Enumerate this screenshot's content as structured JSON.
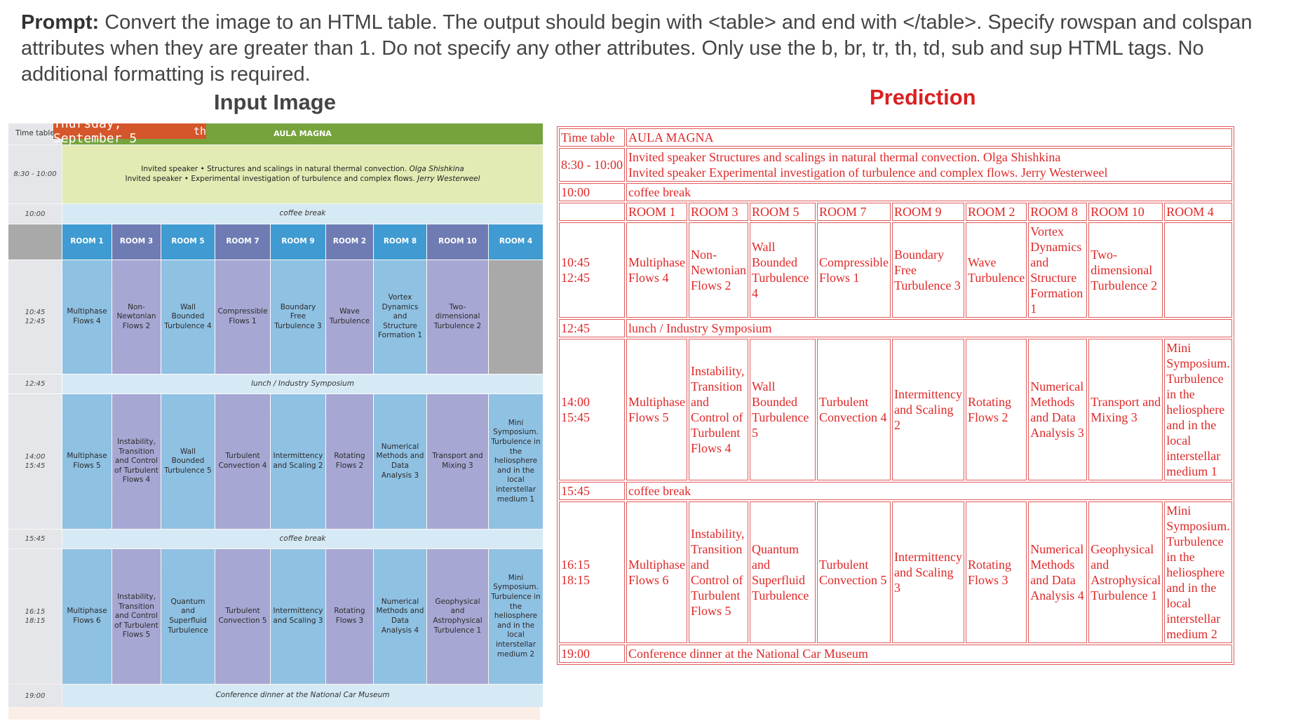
{
  "prompt": {
    "label": "Prompt:",
    "text": "Convert the image to an HTML table. The output should begin with <table> and end with </table>. Specify rowspan and colspan attributes when they are greater than 1. Do not specify any other attributes. Only use the b, br, tr, th, td, sub and sup HTML tags. No additional formatting is required."
  },
  "titles": {
    "input": "Input Image",
    "prediction": "Prediction"
  },
  "input_image": {
    "day": "Thursday, September 5",
    "day_sup": "th",
    "timetable_label": "Time table",
    "hall": "AULA MAGNA",
    "times": {
      "t1": "8:30 - 10:00",
      "t2": "10:00",
      "t3a": "10:45",
      "t3b": "12:45",
      "t4": "12:45",
      "t5a": "14:00",
      "t5b": "15:45",
      "t6": "15:45",
      "t7a": "16:15",
      "t7b": "18:15",
      "t8": "19:00"
    },
    "invited1": "Invited speaker • Structures and scalings in natural thermal convection.",
    "invited1_name": "Olga Shishkina",
    "invited2": "Invited speaker • Experimental investigation of turbulence and complex flows.",
    "invited2_name": "Jerry Westerweel",
    "coffee": "coffee break",
    "lunch": "lunch / Industry Symposium",
    "dinner": "Conference dinner at the National Car Museum",
    "rooms": [
      "ROOM 1",
      "ROOM 3",
      "ROOM 5",
      "ROOM 7",
      "ROOM 9",
      "ROOM 2",
      "ROOM 8",
      "ROOM 10",
      "ROOM 4"
    ],
    "session1": [
      "Multiphase Flows 4",
      "Non-Newtonian Flows 2",
      "Wall Bounded Turbulence 4",
      "Compressible Flows 1",
      "Boundary Free Turbulence 3",
      "Wave Turbulence",
      "Vortex Dynamics and Structure Formation 1",
      "Two-dimensional Turbulence 2"
    ],
    "session2": [
      "Multiphase Flows 5",
      "Instability, Transition and Control of Turbulent Flows 4",
      "Wall Bounded Turbulence 5",
      "Turbulent Convection 4",
      "Intermittency and Scaling 2",
      "Rotating Flows 2",
      "Numerical Methods and Data Analysis 3",
      "Transport and Mixing 3",
      "Mini Symposium. Turbulence in the heliosphere and in the local interstellar medium 1"
    ],
    "session3": [
      "Multiphase Flows 6",
      "Instability, Transition and Control of Turbulent Flows 5",
      "Quantum and Superfluid Turbulence",
      "Turbulent Convection 5",
      "Intermittency and Scaling 3",
      "Rotating Flows 3",
      "Numerical Methods and Data Analysis 4",
      "Geophysical and Astrophysical Turbulence 1",
      "Mini Symposium. Turbulence in the heliosphere and in the local interstellar medium 2"
    ]
  },
  "prediction": {
    "r1": [
      "Time table",
      "AULA MAGNA"
    ],
    "r2_time": "8:30 - 10:00",
    "r2_line1": "Invited speaker Structures and scalings in natural thermal convection. Olga Shishkina",
    "r2_line2": "Invited speaker Experimental investigation of turbulence and complex flows. Jerry Westerweel",
    "r3": [
      "10:00",
      "coffee break"
    ],
    "rooms": [
      "ROOM 1",
      "ROOM 3",
      "ROOM 5",
      "ROOM 7",
      "ROOM 9",
      "ROOM 2",
      "ROOM 8",
      "ROOM 10",
      "ROOM 4"
    ],
    "r5_time1": "10:45",
    "r5_time2": "12:45",
    "r5": [
      "Multiphase Flows 4",
      "Non-Newtonian Flows 2",
      "Wall Bounded Turbulence 4",
      "Compressible Flows 1",
      "Boundary Free Turbulence 3",
      "Wave Turbulence",
      "Vortex Dynamics and Structure Formation 1",
      "Two-dimensional Turbulence 2"
    ],
    "r6": [
      "12:45",
      "lunch / Industry Symposium"
    ],
    "r7_time1": "14:00",
    "r7_time2": "15:45",
    "r7": [
      "Multiphase Flows 5",
      "Instability, Transition and Control of Turbulent Flows 4",
      "Wall Bounded Turbulence 5",
      "Turbulent Convection 4",
      "Intermittency and Scaling 2",
      "Rotating Flows 2",
      "Numerical Methods and Data Analysis 3",
      "Transport and Mixing 3",
      "Mini Symposium. Turbulence in the heliosphere and in the local interstellar medium 1"
    ],
    "r8": [
      "15:45",
      "coffee break"
    ],
    "r9_time1": "16:15",
    "r9_time2": "18:15",
    "r9": [
      "Multiphase Flows 6",
      "Instability, Transition and Control of Turbulent Flows 5",
      "Quantum and Superfluid Turbulence",
      "Turbulent Convection 5",
      "Intermittency and Scaling 3",
      "Rotating Flows 3",
      "Numerical Methods and Data Analysis 4",
      "Geophysical and Astrophysical Turbulence 1",
      "Mini Symposium. Turbulence in the heliosphere and in the local interstellar medium 2"
    ],
    "r10": [
      "19:00",
      "Conference dinner at the National Car Museum"
    ]
  }
}
